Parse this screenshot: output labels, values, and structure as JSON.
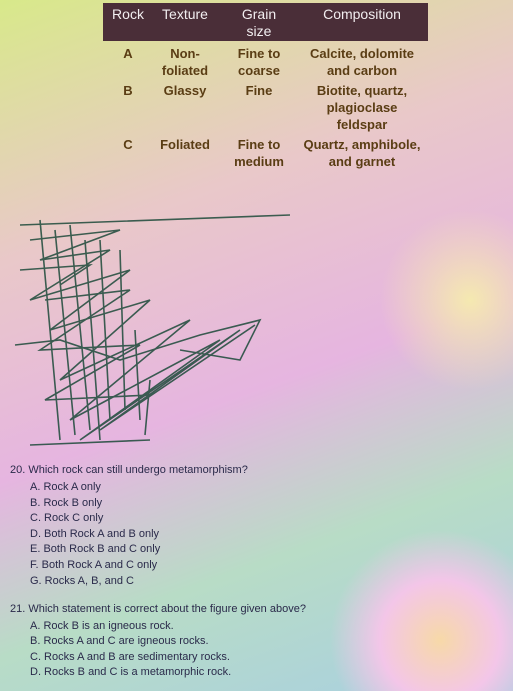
{
  "table": {
    "headers": [
      "Rock",
      "Texture",
      "Grain size",
      "Composition"
    ],
    "rows": [
      [
        "A",
        "Non-foliated",
        "Fine to coarse",
        "Calcite, dolomite and carbon"
      ],
      [
        "B",
        "Glassy",
        "Fine",
        "Biotite, quartz, plagioclase feldspar"
      ],
      [
        "C",
        "Foliated",
        "Fine to medium",
        "Quartz, amphibole, and garnet"
      ]
    ]
  },
  "questions": [
    {
      "stem": "20. Which rock can still undergo metamorphism?",
      "options": [
        "A.  Rock A only",
        "B.  Rock B only",
        "C.  Rock C only",
        "D.  Both Rock A and B only",
        "E.  Both Rock B and C only",
        "F.  Both Rock A and C only",
        "G.  Rocks A, B, and C"
      ]
    },
    {
      "stem": "21. Which statement is correct about the figure given above?",
      "options": [
        "A.  Rock B is an igneous rock.",
        "B.  Rocks A and C are igneous rocks.",
        "C.  Rocks A and B are sedimentary rocks.",
        "D.  Rocks B and C is a metamorphic rock."
      ]
    }
  ]
}
